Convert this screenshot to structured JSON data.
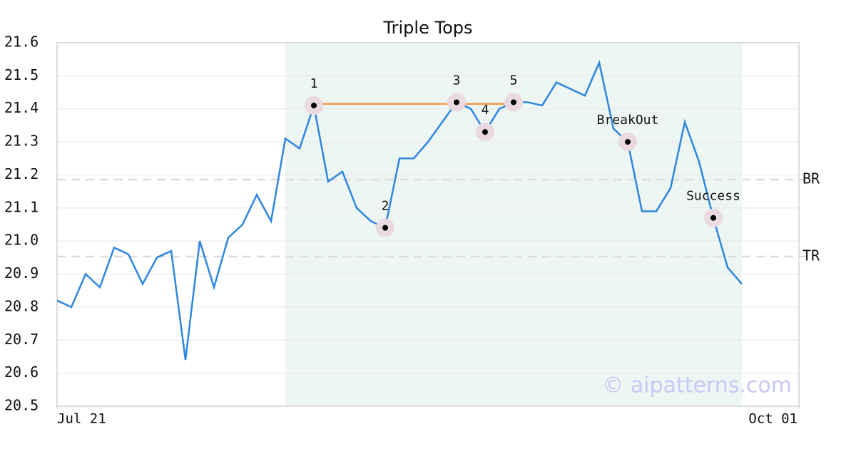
{
  "chart_data": {
    "type": "line",
    "title": "Triple Tops",
    "x": [
      0,
      1,
      2,
      3,
      4,
      5,
      6,
      7,
      8,
      9,
      10,
      11,
      12,
      13,
      14,
      15,
      16,
      17,
      18,
      19,
      20,
      21,
      22,
      23,
      24,
      25,
      26,
      27,
      28,
      29,
      30,
      31,
      32,
      33,
      34,
      35,
      36,
      37,
      38,
      39,
      40,
      41,
      42,
      43,
      44,
      45,
      46,
      47,
      48
    ],
    "series": [
      {
        "color": "#2e86de",
        "values": [
          20.82,
          20.8,
          20.9,
          20.86,
          20.98,
          20.96,
          20.87,
          20.95,
          20.97,
          20.64,
          21.0,
          20.86,
          21.01,
          21.05,
          21.14,
          21.06,
          21.31,
          21.28,
          21.41,
          21.18,
          21.21,
          21.1,
          21.06,
          21.04,
          21.25,
          21.25,
          21.3,
          21.36,
          21.42,
          21.4,
          21.33,
          21.4,
          21.42,
          21.42,
          21.41,
          21.48,
          21.46,
          21.44,
          21.54,
          21.34,
          21.3,
          21.09,
          21.09,
          21.16,
          21.36,
          21.24,
          21.07,
          20.92,
          20.87
        ]
      }
    ],
    "xlim": [
      0,
      52
    ],
    "xticks": [
      {
        "value": 0,
        "label": "Jul 21"
      },
      {
        "value": 52,
        "label": "Oct 01"
      }
    ],
    "ylim": [
      20.5,
      21.6
    ],
    "yticks": [
      {
        "value": 20.5,
        "label": "20.5"
      },
      20.6,
      20.7,
      20.8,
      20.9,
      {
        "value": 21,
        "label": "21.0"
      },
      21.1,
      21.2,
      21.3,
      21.4,
      21.5,
      21.6
    ],
    "grid": true,
    "highlight_span": [
      16,
      48
    ],
    "resistance": {
      "from": 18,
      "to": 32,
      "value": 21.415,
      "color": "#f39c4a"
    },
    "levels": [
      {
        "label": "BR",
        "value": 21.186
      },
      {
        "label": "TR",
        "value": 20.953
      }
    ],
    "annotations": [
      {
        "label": "1",
        "index": 18
      },
      {
        "label": "2",
        "index": 23
      },
      {
        "label": "3",
        "index": 28
      },
      {
        "label": "4",
        "index": 30
      },
      {
        "label": "5",
        "index": 32
      },
      {
        "label": "BreakOut",
        "index": 40
      },
      {
        "label": "Success",
        "index": 46
      }
    ],
    "watermark": "© aipatterns.com"
  }
}
